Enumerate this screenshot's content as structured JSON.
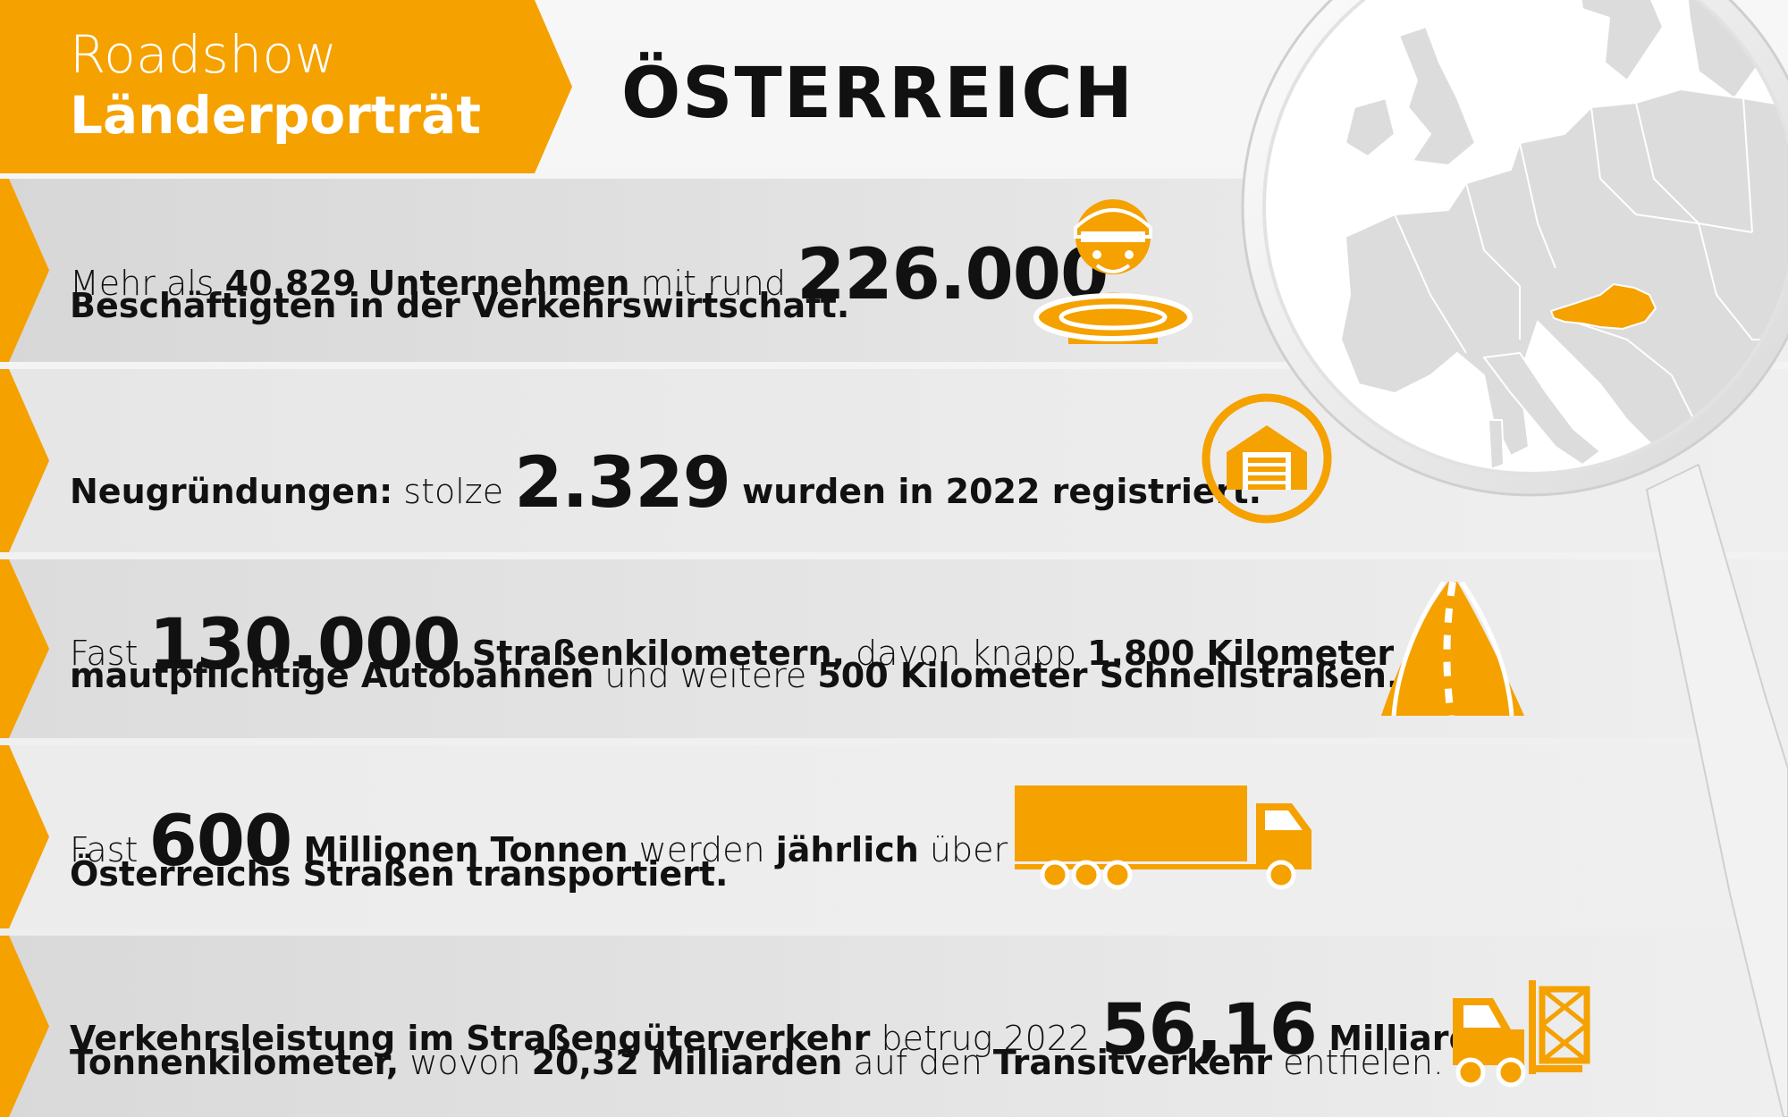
{
  "header": {
    "line1": "Roadshow",
    "line2": "Länderporträt",
    "country": "ÖSTERREICH"
  },
  "colors": {
    "accent": "#f5a100",
    "band_dark": "#d6d6d6",
    "band_light": "#ededed",
    "map_land": "#dcdcdc",
    "map_highlight": "#f5a100"
  },
  "rows": [
    {
      "line1": [
        {
          "text": "Mehr als ",
          "style": "light"
        },
        {
          "text": "40.829 Unternehmen",
          "style": "bold"
        },
        {
          "text": " mit rund ",
          "style": "light"
        },
        {
          "text": "226.000",
          "style": "big"
        }
      ],
      "line2": [
        {
          "text": "Beschäftigten in der Verkehrswirtschaft.",
          "style": "bold"
        }
      ],
      "icon": "worker-icon"
    },
    {
      "line1": [
        {
          "text": "Neugründungen:",
          "style": "bold"
        },
        {
          "text": " stolze ",
          "style": "light"
        },
        {
          "text": "2.329",
          "style": "big"
        },
        {
          "text": " wurden in 2022 registriert.",
          "style": "bold"
        }
      ],
      "line2": [],
      "icon": "garage-icon"
    },
    {
      "line1": [
        {
          "text": "Fast ",
          "style": "light"
        },
        {
          "text": "130.000",
          "style": "big"
        },
        {
          "text": " Straßenkilometern,",
          "style": "bold"
        },
        {
          "text": " davon knapp ",
          "style": "light"
        },
        {
          "text": "1.800 Kilometer",
          "style": "bold"
        }
      ],
      "line2": [
        {
          "text": "mautpflichtige Autobahnen",
          "style": "bold"
        },
        {
          "text": " und weitere ",
          "style": "light"
        },
        {
          "text": "500 Kilometer Schnellstraßen.",
          "style": "bold"
        }
      ],
      "icon": "road-icon"
    },
    {
      "line1": [
        {
          "text": "Fast ",
          "style": "light"
        },
        {
          "text": "600",
          "style": "big"
        },
        {
          "text": " Millionen Tonnen",
          "style": "bold"
        },
        {
          "text": " werden ",
          "style": "light"
        },
        {
          "text": "jährlich",
          "style": "bold"
        },
        {
          "text": " über",
          "style": "light"
        }
      ],
      "line2": [
        {
          "text": "Österreichs Straßen transportiert.",
          "style": "bold"
        }
      ],
      "icon": "truck-icon"
    },
    {
      "line1": [
        {
          "text": "Verkehrsleistung im Straßengüterverkehr",
          "style": "bold"
        },
        {
          "text": " betrug 2022 ",
          "style": "light"
        },
        {
          "text": "56,16",
          "style": "big"
        },
        {
          "text": " Milliarden",
          "style": "bold"
        }
      ],
      "line2": [
        {
          "text": "Tonnenkilometer,",
          "style": "bold"
        },
        {
          "text": " wovon ",
          "style": "light"
        },
        {
          "text": "20,32 Milliarden",
          "style": "bold"
        },
        {
          "text": " auf den ",
          "style": "light"
        },
        {
          "text": "Transitverkehr",
          "style": "bold"
        },
        {
          "text": " entfielen.",
          "style": "light"
        }
      ],
      "icon": "forklift-icon"
    }
  ],
  "map": {
    "icon": "magnifier-europe-map-icon",
    "highlight": "austria"
  }
}
